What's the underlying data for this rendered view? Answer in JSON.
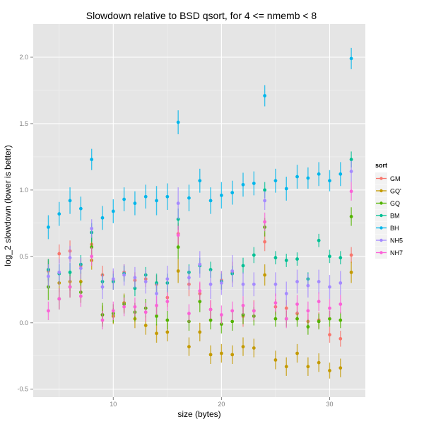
{
  "chart_data": {
    "type": "scatter",
    "title": "Slowdown relative to BSD qsort, for 4 <= nmemb < 8",
    "xlabel": "size (bytes)",
    "ylabel": "log_2 slowdown (lower is better)",
    "xlim": [
      2.6,
      33.3
    ],
    "ylim": [
      -0.56,
      2.25
    ],
    "xticks": [
      10,
      20,
      30
    ],
    "yticks": [
      -0.5,
      0.0,
      0.5,
      1.0,
      1.5,
      2.0
    ],
    "xtick_labels": [
      "10",
      "20",
      "30"
    ],
    "ytick_labels": [
      "-0.5",
      "0.0",
      "0.5",
      "1.0",
      "1.5",
      "2.0"
    ],
    "grid": true,
    "legend": {
      "title": "sort",
      "placement": "right"
    },
    "x": [
      4,
      5,
      6,
      7,
      8,
      9,
      10,
      11,
      12,
      13,
      14,
      15,
      16,
      17,
      18,
      19,
      20,
      21,
      22,
      23,
      24,
      25,
      26,
      27,
      28,
      29,
      30,
      31,
      32
    ],
    "series": [
      {
        "name": "GM",
        "color": "#F8766D",
        "values": [
          0.39,
          0.52,
          0.54,
          0.43,
          0.59,
          0.36,
          0.32,
          0.38,
          0.32,
          0.33,
          0.29,
          0.19,
          0.67,
          0.29,
          0.22,
          0.1,
          0.32,
          0.38,
          0.05,
          0.09,
          0.61,
          0.12,
          0.11,
          0.07,
          0.01,
          0.02,
          -0.09,
          -0.12,
          0.51
        ],
        "err": [
          0.08,
          0.07,
          0.08,
          0.06,
          0.07,
          0.07,
          0.07,
          0.06,
          0.06,
          0.06,
          0.07,
          0.07,
          0.08,
          0.09,
          0.08,
          0.07,
          0.07,
          0.08,
          0.08,
          0.08,
          0.07,
          0.06,
          0.06,
          0.06,
          0.06,
          0.06,
          0.06,
          0.06,
          0.06
        ]
      },
      {
        "name": "GQ'",
        "color": "#C49A00",
        "values": [
          0.4,
          0.3,
          0.31,
          0.31,
          0.47,
          0.06,
          0.05,
          0.15,
          0.03,
          -0.02,
          -0.08,
          -0.07,
          0.39,
          -0.18,
          -0.07,
          -0.24,
          -0.23,
          -0.24,
          -0.18,
          -0.19,
          0.36,
          -0.28,
          -0.33,
          -0.23,
          -0.33,
          -0.3,
          -0.36,
          -0.34,
          0.38
        ],
        "err": [
          0.08,
          0.07,
          0.07,
          0.07,
          0.07,
          0.07,
          0.06,
          0.07,
          0.07,
          0.07,
          0.07,
          0.07,
          0.09,
          0.07,
          0.07,
          0.07,
          0.07,
          0.07,
          0.07,
          0.07,
          0.08,
          0.07,
          0.07,
          0.07,
          0.07,
          0.07,
          0.06,
          0.07,
          0.08
        ]
      },
      {
        "name": "GQ",
        "color": "#53B400",
        "values": [
          0.27,
          0.18,
          0.27,
          0.23,
          0.57,
          0.06,
          0.07,
          0.14,
          0.08,
          0.11,
          0.05,
          0.02,
          0.57,
          0.01,
          0.16,
          0.02,
          -0.01,
          0.01,
          0.06,
          0.05,
          0.72,
          0.03,
          0.03,
          0.03,
          -0.03,
          0.01,
          0.03,
          0.02,
          0.8
        ],
        "err": [
          0.1,
          0.08,
          0.08,
          0.08,
          0.08,
          0.09,
          0.07,
          0.07,
          0.07,
          0.07,
          0.07,
          0.07,
          0.09,
          0.07,
          0.08,
          0.07,
          0.07,
          0.07,
          0.07,
          0.07,
          0.07,
          0.06,
          0.06,
          0.06,
          0.06,
          0.06,
          0.06,
          0.06,
          0.07
        ]
      },
      {
        "name": "BM",
        "color": "#00C094",
        "values": [
          0.4,
          0.37,
          0.38,
          0.44,
          0.68,
          0.31,
          0.31,
          0.37,
          0.26,
          0.36,
          0.3,
          0.3,
          0.78,
          0.38,
          0.43,
          0.4,
          0.31,
          0.37,
          0.43,
          0.51,
          1.0,
          0.49,
          0.47,
          0.48,
          0.33,
          0.62,
          0.5,
          0.49,
          1.23
        ],
        "err": [
          0.08,
          0.07,
          0.07,
          0.07,
          0.07,
          0.06,
          0.06,
          0.06,
          0.06,
          0.06,
          0.07,
          0.07,
          0.08,
          0.06,
          0.06,
          0.06,
          0.06,
          0.06,
          0.06,
          0.06,
          0.06,
          0.05,
          0.05,
          0.05,
          0.05,
          0.05,
          0.05,
          0.05,
          0.06
        ]
      },
      {
        "name": "BH",
        "color": "#00B6EB",
        "values": [
          0.72,
          0.82,
          0.92,
          0.86,
          1.23,
          0.79,
          0.84,
          0.93,
          0.9,
          0.95,
          0.92,
          0.95,
          1.51,
          0.94,
          1.07,
          0.92,
          0.96,
          0.98,
          1.04,
          1.05,
          1.71,
          1.07,
          1.01,
          1.1,
          1.09,
          1.12,
          1.07,
          1.12,
          1.99
        ],
        "err": [
          0.09,
          0.09,
          0.1,
          0.09,
          0.08,
          0.09,
          0.09,
          0.09,
          0.09,
          0.09,
          0.11,
          0.1,
          0.09,
          0.1,
          0.09,
          0.1,
          0.1,
          0.09,
          0.09,
          0.09,
          0.08,
          0.09,
          0.09,
          0.09,
          0.08,
          0.09,
          0.08,
          0.09,
          0.08
        ]
      },
      {
        "name": "NH5",
        "color": "#A58AFF",
        "values": [
          0.35,
          0.38,
          0.49,
          0.41,
          0.71,
          0.27,
          0.33,
          0.36,
          0.34,
          0.31,
          0.22,
          0.33,
          0.9,
          0.34,
          0.44,
          0.29,
          0.3,
          0.39,
          0.29,
          0.29,
          0.92,
          0.29,
          0.22,
          0.31,
          0.28,
          0.31,
          0.27,
          0.3,
          1.14
        ],
        "err": [
          0.09,
          0.1,
          0.09,
          0.08,
          0.07,
          0.09,
          0.08,
          0.08,
          0.08,
          0.09,
          0.08,
          0.1,
          0.12,
          0.09,
          0.1,
          0.11,
          0.09,
          0.12,
          0.09,
          0.09,
          0.07,
          0.09,
          0.09,
          0.09,
          0.09,
          0.09,
          0.09,
          0.09,
          0.08
        ]
      },
      {
        "name": "NH7",
        "color": "#FB61D7",
        "values": [
          0.09,
          0.18,
          0.27,
          0.2,
          0.5,
          0.02,
          0.09,
          0.12,
          0.12,
          0.08,
          0.13,
          0.16,
          0.66,
          0.07,
          0.24,
          0.1,
          0.06,
          0.09,
          0.13,
          0.09,
          0.76,
          0.15,
          0.03,
          0.14,
          0.09,
          0.16,
          0.11,
          0.14,
          0.99
        ],
        "err": [
          0.07,
          0.08,
          0.08,
          0.08,
          0.07,
          0.07,
          0.07,
          0.07,
          0.07,
          0.07,
          0.07,
          0.07,
          0.07,
          0.07,
          0.07,
          0.07,
          0.07,
          0.07,
          0.07,
          0.07,
          0.07,
          0.07,
          0.07,
          0.07,
          0.07,
          0.07,
          0.07,
          0.07,
          0.07
        ]
      }
    ]
  }
}
